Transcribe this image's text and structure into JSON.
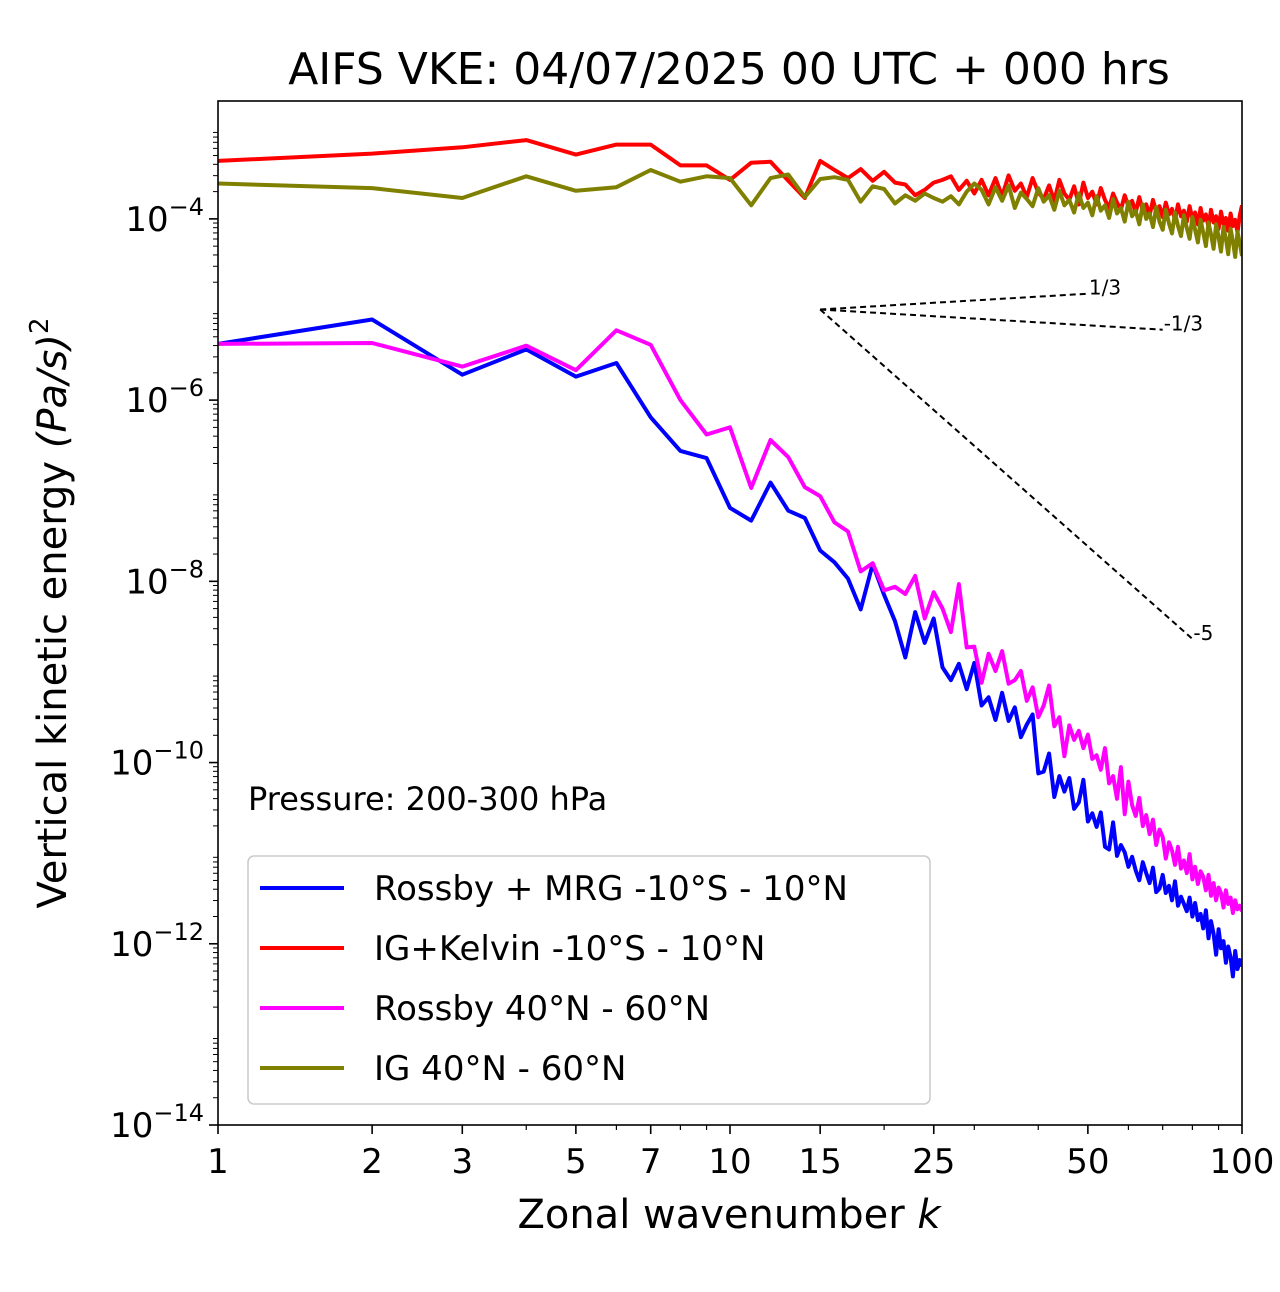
{
  "chart_data": {
    "type": "line",
    "title": "AIFS VKE: 04/07/2025 00 UTC + 000 hrs",
    "xlabel": "Zonal wavenumber",
    "xlabel_var": "k",
    "ylabel": "Vertical kinetic energy",
    "ylabel_unit": "(Pa/s)",
    "ylabel_exp": "2",
    "xscale": "log",
    "yscale": "log",
    "xlim": [
      1,
      100
    ],
    "ylim": [
      1e-14,
      0.002
    ],
    "x_ticks": [
      1,
      2,
      3,
      5,
      7,
      10,
      15,
      25,
      50,
      100
    ],
    "x_tick_labels": [
      "1",
      "2",
      "3",
      "5",
      "7",
      "10",
      "15",
      "25",
      "50",
      "100"
    ],
    "y_ticks": [
      {
        "base": "10",
        "exp": "−14",
        "value": -14
      },
      {
        "base": "10",
        "exp": "−12",
        "value": -12
      },
      {
        "base": "10",
        "exp": "−10",
        "value": -10
      },
      {
        "base": "10",
        "exp": "−8",
        "value": -8
      },
      {
        "base": "10",
        "exp": "−6",
        "value": -6
      },
      {
        "base": "10",
        "exp": "−4",
        "value": -4
      }
    ],
    "annotation": "Pressure: 200-300 hPa",
    "legend_position": "lower-left",
    "slope_lines": [
      {
        "label": "1/3",
        "slope": 0.3333,
        "x0": 15,
        "y0": 1e-05,
        "x1": 50
      },
      {
        "label": "-1/3",
        "slope": -0.3333,
        "x0": 15,
        "y0": 1e-05,
        "x1": 70
      },
      {
        "label": "-5",
        "slope": -5,
        "x0": 15,
        "y0": 1e-05,
        "x1": 80
      }
    ],
    "series": [
      {
        "name": "Rossby + MRG -10°S - 10°N",
        "color": "#0000ff",
        "x": [
          1,
          2,
          3,
          4,
          5,
          6,
          7,
          8,
          9,
          10,
          11,
          12,
          13,
          14,
          15,
          16,
          17,
          18,
          19,
          20,
          21,
          22,
          23,
          24,
          25,
          26,
          27,
          28,
          29,
          30,
          31,
          32,
          33,
          34,
          35,
          36,
          37,
          38,
          39,
          40,
          41,
          42,
          43,
          44,
          45,
          46,
          47,
          48,
          49,
          50,
          51,
          52,
          53,
          54,
          55,
          56,
          57,
          58,
          59,
          60,
          61,
          62,
          63,
          64,
          65,
          66,
          67,
          68,
          69,
          70,
          71,
          72,
          73,
          74,
          75,
          76,
          77,
          78,
          79,
          80,
          81,
          82,
          83,
          84,
          85,
          86,
          87,
          88,
          89,
          90,
          91,
          92,
          93,
          94,
          95,
          96,
          97,
          98,
          99,
          100
        ],
        "y_log10": [
          -5.38,
          -5.11,
          -5.72,
          -5.44,
          -5.74,
          -5.59,
          -6.19,
          -6.56,
          -6.64,
          -7.19,
          -7.33,
          -6.91,
          -7.22,
          -7.3,
          -7.66,
          -7.79,
          -7.97,
          -8.31,
          -7.81,
          -8.15,
          -8.44,
          -8.84,
          -8.34,
          -8.68,
          -8.41,
          -8.95,
          -9.09,
          -8.91,
          -9.19,
          -8.9,
          -9.37,
          -9.28,
          -9.53,
          -9.23,
          -9.54,
          -9.39,
          -9.72,
          -9.58,
          -9.47,
          -10.12,
          -10.1,
          -9.9,
          -10.38,
          -10.15,
          -10.32,
          -10.17,
          -10.51,
          -10.44,
          -10.19,
          -10.65,
          -10.56,
          -10.71,
          -10.55,
          -10.93,
          -10.96,
          -10.66,
          -11.03,
          -10.91,
          -10.99,
          -11.15,
          -11.04,
          -11.19,
          -11.3,
          -11.1,
          -11.22,
          -11.33,
          -11.16,
          -11.43,
          -11.39,
          -11.24,
          -11.44,
          -11.36,
          -11.52,
          -11.31,
          -11.58,
          -11.48,
          -11.56,
          -11.64,
          -11.49,
          -11.7,
          -11.55,
          -11.74,
          -11.67,
          -11.83,
          -11.63,
          -11.94,
          -11.75,
          -11.89,
          -12.12,
          -11.84,
          -12.05,
          -11.97,
          -12.21,
          -12.03,
          -12.15,
          -12.36,
          -12.08,
          -12.28,
          -12.18,
          -12.25
        ]
      },
      {
        "name": "IG+Kelvin -10°S - 10°N",
        "color": "#ff0000",
        "x": [
          1,
          2,
          3,
          4,
          5,
          6,
          7,
          8,
          9,
          10,
          11,
          12,
          13,
          14,
          15,
          16,
          17,
          18,
          19,
          20,
          21,
          22,
          23,
          24,
          25,
          26,
          27,
          28,
          29,
          30,
          31,
          32,
          33,
          34,
          35,
          36,
          37,
          38,
          39,
          40,
          41,
          42,
          43,
          44,
          45,
          46,
          47,
          48,
          49,
          50,
          51,
          52,
          53,
          54,
          55,
          56,
          57,
          58,
          59,
          60,
          61,
          62,
          63,
          64,
          65,
          66,
          67,
          68,
          69,
          70,
          71,
          72,
          73,
          74,
          75,
          76,
          77,
          78,
          79,
          80,
          81,
          82,
          83,
          84,
          85,
          86,
          87,
          88,
          89,
          90,
          91,
          92,
          93,
          94,
          95,
          96,
          97,
          98,
          99,
          100
        ],
        "y_log10": [
          -3.36,
          -3.28,
          -3.21,
          -3.13,
          -3.29,
          -3.18,
          -3.18,
          -3.41,
          -3.41,
          -3.57,
          -3.38,
          -3.37,
          -3.58,
          -3.77,
          -3.36,
          -3.46,
          -3.55,
          -3.45,
          -3.58,
          -3.48,
          -3.6,
          -3.62,
          -3.74,
          -3.68,
          -3.6,
          -3.57,
          -3.53,
          -3.68,
          -3.58,
          -3.72,
          -3.57,
          -3.74,
          -3.55,
          -3.75,
          -3.52,
          -3.69,
          -3.61,
          -3.76,
          -3.55,
          -3.71,
          -3.78,
          -3.63,
          -3.8,
          -3.57,
          -3.72,
          -3.79,
          -3.64,
          -3.84,
          -3.6,
          -3.77,
          -3.7,
          -3.84,
          -3.66,
          -3.79,
          -3.88,
          -3.72,
          -3.82,
          -3.9,
          -3.74,
          -3.86,
          -3.8,
          -3.93,
          -3.76,
          -3.91,
          -3.84,
          -3.96,
          -3.79,
          -3.93,
          -3.86,
          -3.98,
          -3.82,
          -3.95,
          -3.89,
          -4.01,
          -3.84,
          -3.97,
          -3.91,
          -4.03,
          -3.86,
          -4.0,
          -3.93,
          -4.06,
          -3.88,
          -4.02,
          -3.95,
          -4.09,
          -3.9,
          -4.04,
          -3.97,
          -4.11,
          -3.92,
          -4.06,
          -3.99,
          -4.13,
          -3.94,
          -4.08,
          -4.01,
          -4.15,
          -3.96,
          -3.85
        ]
      },
      {
        "name": "Rossby 40°N - 60°N",
        "color": "#ff00ff",
        "x": [
          1,
          2,
          3,
          4,
          5,
          6,
          7,
          8,
          9,
          10,
          11,
          12,
          13,
          14,
          15,
          16,
          17,
          18,
          19,
          20,
          21,
          22,
          23,
          24,
          25,
          26,
          27,
          28,
          29,
          30,
          31,
          32,
          33,
          34,
          35,
          36,
          37,
          38,
          39,
          40,
          41,
          42,
          43,
          44,
          45,
          46,
          47,
          48,
          49,
          50,
          51,
          52,
          53,
          54,
          55,
          56,
          57,
          58,
          59,
          60,
          61,
          62,
          63,
          64,
          65,
          66,
          67,
          68,
          69,
          70,
          71,
          72,
          73,
          74,
          75,
          76,
          77,
          78,
          79,
          80,
          81,
          82,
          83,
          84,
          85,
          86,
          87,
          88,
          89,
          90,
          91,
          92,
          93,
          94,
          95,
          96,
          97,
          98,
          99,
          100
        ],
        "y_log10": [
          -5.38,
          -5.37,
          -5.63,
          -5.4,
          -5.67,
          -5.23,
          -5.39,
          -6.0,
          -6.38,
          -6.3,
          -6.97,
          -6.44,
          -6.63,
          -6.96,
          -7.06,
          -7.35,
          -7.45,
          -7.89,
          -7.8,
          -8.1,
          -8.06,
          -8.14,
          -7.94,
          -8.41,
          -8.12,
          -8.3,
          -8.56,
          -8.03,
          -8.73,
          -8.72,
          -9.12,
          -8.8,
          -8.99,
          -8.77,
          -9.13,
          -9.09,
          -8.99,
          -9.32,
          -9.17,
          -9.5,
          -9.37,
          -9.15,
          -9.6,
          -9.5,
          -9.93,
          -9.59,
          -9.75,
          -9.65,
          -9.84,
          -9.69,
          -9.96,
          -9.92,
          -10.08,
          -9.84,
          -10.23,
          -10.15,
          -10.4,
          -10.05,
          -10.57,
          -10.21,
          -10.47,
          -10.59,
          -10.39,
          -10.7,
          -10.58,
          -10.79,
          -10.63,
          -10.91,
          -10.74,
          -10.82,
          -11.06,
          -10.88,
          -10.97,
          -11.13,
          -10.93,
          -11.17,
          -11.08,
          -11.22,
          -11.01,
          -11.29,
          -11.15,
          -11.34,
          -11.2,
          -11.26,
          -11.41,
          -11.24,
          -11.47,
          -11.33,
          -11.52,
          -11.38,
          -11.44,
          -11.6,
          -11.41,
          -11.56,
          -11.49,
          -11.66,
          -11.52,
          -11.62,
          -11.58,
          -11.64
        ]
      },
      {
        "name": "IG 40°N - 60°N",
        "color": "#808000",
        "x": [
          1,
          2,
          3,
          4,
          5,
          6,
          7,
          8,
          9,
          10,
          11,
          12,
          13,
          14,
          15,
          16,
          17,
          18,
          19,
          20,
          21,
          22,
          23,
          24,
          25,
          26,
          27,
          28,
          29,
          30,
          31,
          32,
          33,
          34,
          35,
          36,
          37,
          38,
          39,
          40,
          41,
          42,
          43,
          44,
          45,
          46,
          47,
          48,
          49,
          50,
          51,
          52,
          53,
          54,
          55,
          56,
          57,
          58,
          59,
          60,
          61,
          62,
          63,
          64,
          65,
          66,
          67,
          68,
          69,
          70,
          71,
          72,
          73,
          74,
          75,
          76,
          77,
          78,
          79,
          80,
          81,
          82,
          83,
          84,
          85,
          86,
          87,
          88,
          89,
          90,
          91,
          92,
          93,
          94,
          95,
          96,
          97,
          98,
          99,
          100
        ],
        "y_log10": [
          -3.61,
          -3.66,
          -3.77,
          -3.53,
          -3.69,
          -3.65,
          -3.46,
          -3.59,
          -3.53,
          -3.55,
          -3.85,
          -3.55,
          -3.51,
          -3.76,
          -3.56,
          -3.54,
          -3.57,
          -3.81,
          -3.64,
          -3.67,
          -3.83,
          -3.74,
          -3.8,
          -3.72,
          -3.77,
          -3.81,
          -3.75,
          -3.84,
          -3.7,
          -3.61,
          -3.68,
          -3.84,
          -3.65,
          -3.8,
          -3.63,
          -3.88,
          -3.71,
          -3.78,
          -3.86,
          -3.66,
          -3.81,
          -3.74,
          -3.9,
          -3.69,
          -3.85,
          -3.79,
          -3.93,
          -3.72,
          -3.88,
          -3.82,
          -3.96,
          -3.75,
          -3.91,
          -3.85,
          -3.99,
          -3.78,
          -3.94,
          -3.88,
          -4.03,
          -3.81,
          -3.97,
          -3.91,
          -4.06,
          -3.84,
          -4.0,
          -3.94,
          -4.09,
          -3.87,
          -4.03,
          -4.12,
          -3.9,
          -4.05,
          -4.16,
          -3.93,
          -4.08,
          -4.19,
          -3.96,
          -4.1,
          -4.22,
          -3.98,
          -4.12,
          -4.26,
          -4.01,
          -4.15,
          -4.3,
          -4.04,
          -4.17,
          -4.33,
          -4.06,
          -4.2,
          -4.36,
          -4.09,
          -4.22,
          -4.39,
          -4.11,
          -4.25,
          -4.42,
          -4.14,
          -4.27,
          -4.41
        ]
      }
    ]
  }
}
